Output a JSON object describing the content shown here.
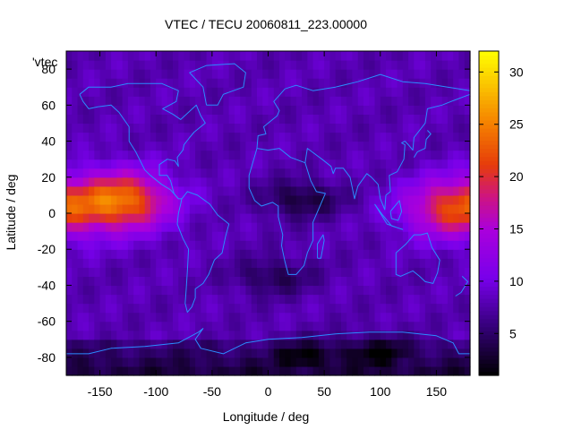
{
  "chart_data": {
    "type": "heatmap",
    "title": "VTEC / TECU 20060811_223.00000",
    "key_label": "'vtec",
    "xlabel": "Longitude / deg",
    "ylabel": "Latitude / deg",
    "xlim": [
      -180,
      180
    ],
    "ylim": [
      -90,
      90
    ],
    "xticks": [
      -150,
      -100,
      -50,
      0,
      50,
      100,
      150
    ],
    "yticks": [
      -80,
      -60,
      -40,
      -20,
      0,
      20,
      40,
      60,
      80
    ],
    "colorbar": {
      "min": 1,
      "max": 32,
      "ticks": [
        5,
        10,
        15,
        20,
        25,
        30
      ]
    },
    "colors": {
      "coastline": "#2b8cff"
    },
    "grid": false,
    "legend": "none",
    "enhancements": [
      {
        "name": "eastern-pacific-anomaly",
        "lon": -130,
        "lat": 7,
        "peak": 24
      },
      {
        "name": "western-pacific-anomaly",
        "lon": 165,
        "lat": 3,
        "peak": 21
      }
    ],
    "background_level": 8,
    "minima": [
      {
        "lon": 30,
        "lat": 8,
        "value": 3
      },
      {
        "lon": 5,
        "lat": -35,
        "value": 4
      },
      {
        "lon": 30,
        "lat": -80,
        "value": 1
      },
      {
        "lon": 100,
        "lat": -78,
        "value": 1
      }
    ]
  }
}
